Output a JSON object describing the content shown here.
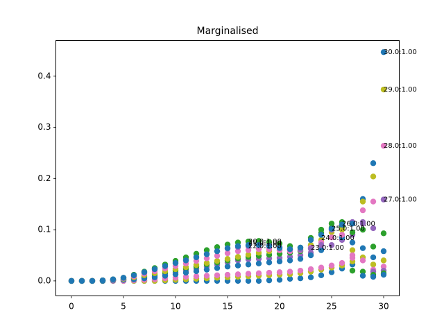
{
  "chart_data": {
    "type": "scatter",
    "title": "Marginalised",
    "xlabel": "",
    "ylabel": "",
    "xlim": [
      -1.5,
      31.5
    ],
    "ylim": [
      -0.0293,
      0.4696
    ],
    "x_ticks": [
      0,
      5,
      10,
      15,
      20,
      25,
      30
    ],
    "y_ticks": [
      0.0,
      0.1,
      0.2,
      0.3,
      0.4
    ],
    "y_tick_labels": [
      "0.0",
      "0.1",
      "0.2",
      "0.3",
      "0.4"
    ],
    "grid": false,
    "legend": "none",
    "palette": [
      "#1f77b4",
      "#bcbd22",
      "#e377c2",
      "#9467bd",
      "#2ca02c"
    ],
    "series": [
      {
        "color": "#1f77b4",
        "x": [
          0,
          1,
          2,
          3,
          4,
          5,
          6,
          7,
          8,
          9,
          10,
          11,
          12,
          13,
          14,
          15,
          16,
          17,
          18,
          19,
          20,
          21,
          22,
          23,
          24,
          25,
          26,
          27,
          28,
          29,
          30
        ],
        "y": [
          0,
          0,
          0,
          0,
          0,
          0,
          0,
          0,
          0,
          0,
          0,
          0,
          0,
          0,
          0,
          0,
          0,
          0,
          0,
          0.001,
          0.002,
          0.004,
          0.005,
          0.007,
          0.011,
          0.017,
          0.024,
          0.032,
          0.064,
          0.23,
          0.447
        ]
      },
      {
        "color": "#bcbd22",
        "x": [
          0,
          1,
          2,
          3,
          4,
          5,
          6,
          7,
          8,
          9,
          10,
          11,
          12,
          13,
          14,
          15,
          16,
          17,
          18,
          19,
          20,
          21,
          22,
          23,
          24,
          25,
          26,
          27,
          28,
          29,
          30
        ],
        "y": [
          0,
          0,
          0,
          0,
          0,
          0,
          0,
          0,
          0,
          0.001,
          0.002,
          0.003,
          0.004,
          0.005,
          0.006,
          0.007,
          0.008,
          0.009,
          0.01,
          0.011,
          0.012,
          0.013,
          0.015,
          0.018,
          0.022,
          0.026,
          0.03,
          0.038,
          0.046,
          0.204,
          0.374
        ]
      },
      {
        "color": "#e377c2",
        "x": [
          0,
          1,
          2,
          3,
          4,
          5,
          6,
          7,
          8,
          9,
          10,
          11,
          12,
          13,
          14,
          15,
          16,
          17,
          18,
          19,
          20,
          21,
          22,
          23,
          24,
          25,
          26,
          27,
          28,
          29,
          30
        ],
        "y": [
          0,
          0,
          0,
          0,
          0,
          0,
          0.001,
          0.002,
          0.003,
          0.005,
          0.006,
          0.008,
          0.009,
          0.01,
          0.011,
          0.012,
          0.013,
          0.014,
          0.015,
          0.016,
          0.017,
          0.018,
          0.02,
          0.023,
          0.026,
          0.03,
          0.035,
          0.045,
          0.138,
          0.155,
          0.264
        ]
      },
      {
        "color": "#9467bd",
        "x": [
          0,
          1,
          2,
          3,
          4,
          5,
          6,
          7,
          8,
          9,
          10,
          11,
          12,
          13,
          14,
          15,
          16,
          17,
          18,
          19,
          20,
          21,
          22,
          23,
          24,
          25,
          26,
          27,
          28,
          29,
          30
        ],
        "y": [
          0,
          0,
          0,
          0,
          0.001,
          0.002,
          0.004,
          0.006,
          0.009,
          0.012,
          0.016,
          0.02,
          0.024,
          0.028,
          0.032,
          0.036,
          0.04,
          0.042,
          0.043,
          0.044,
          0.045,
          0.047,
          0.05,
          0.055,
          0.062,
          0.07,
          0.08,
          0.09,
          0.112,
          0.103,
          0.159
        ]
      },
      {
        "color": "#2ca02c",
        "x": [
          0,
          1,
          2,
          3,
          4,
          5,
          6,
          7,
          8,
          9,
          10,
          11,
          12,
          13,
          14,
          15,
          16,
          17,
          18,
          19,
          20,
          21,
          22,
          23,
          24,
          25,
          26,
          27,
          28,
          29,
          30
        ],
        "y": [
          0,
          0,
          0,
          0,
          0.001,
          0.003,
          0.005,
          0.008,
          0.012,
          0.016,
          0.02,
          0.024,
          0.028,
          0.032,
          0.036,
          0.04,
          0.044,
          0.047,
          0.049,
          0.051,
          0.053,
          0.055,
          0.058,
          0.07,
          0.1,
          0.112,
          0.105,
          0.095,
          0.1,
          0.067,
          0.093
        ]
      },
      {
        "color": "#1f77b4",
        "x": [
          0,
          1,
          2,
          3,
          4,
          5,
          6,
          7,
          8,
          9,
          10,
          11,
          12,
          13,
          14,
          15,
          16,
          17,
          18,
          19,
          20,
          21,
          22,
          23,
          24,
          25,
          26,
          27,
          28,
          29,
          30
        ],
        "y": [
          0,
          0,
          0,
          0,
          0.001,
          0.002,
          0.003,
          0.005,
          0.007,
          0.01,
          0.013,
          0.016,
          0.019,
          0.022,
          0.025,
          0.028,
          0.03,
          0.032,
          0.034,
          0.036,
          0.038,
          0.04,
          0.043,
          0.05,
          0.06,
          0.1,
          0.085,
          0.075,
          0.16,
          0.046,
          0.058
        ]
      },
      {
        "color": "#bcbd22",
        "x": [
          0,
          1,
          2,
          3,
          4,
          5,
          6,
          7,
          8,
          9,
          10,
          11,
          12,
          13,
          14,
          15,
          16,
          17,
          18,
          19,
          20,
          21,
          22,
          23,
          24,
          25,
          26,
          27,
          28,
          29,
          30
        ],
        "y": [
          0,
          0,
          0,
          0.001,
          0.002,
          0.004,
          0.007,
          0.011,
          0.015,
          0.019,
          0.023,
          0.027,
          0.031,
          0.035,
          0.039,
          0.043,
          0.047,
          0.051,
          0.055,
          0.058,
          0.06,
          0.062,
          0.064,
          0.07,
          0.08,
          0.095,
          0.1,
          0.06,
          0.155,
          0.032,
          0.04
        ]
      },
      {
        "color": "#e377c2",
        "x": [
          0,
          1,
          2,
          3,
          4,
          5,
          6,
          7,
          8,
          9,
          10,
          11,
          12,
          13,
          14,
          15,
          16,
          17,
          18,
          19,
          20,
          21,
          22,
          23,
          24,
          25,
          26,
          27,
          28,
          29,
          30
        ],
        "y": [
          0,
          0,
          0,
          0.001,
          0.002,
          0.005,
          0.009,
          0.014,
          0.019,
          0.024,
          0.029,
          0.034,
          0.039,
          0.044,
          0.049,
          0.054,
          0.058,
          0.06,
          0.062,
          0.062,
          0.06,
          0.058,
          0.06,
          0.065,
          0.075,
          0.085,
          0.09,
          0.05,
          0.04,
          0.022,
          0.028
        ]
      },
      {
        "color": "#9467bd",
        "x": [
          0,
          1,
          2,
          3,
          4,
          5,
          6,
          7,
          8,
          9,
          10,
          11,
          12,
          13,
          14,
          15,
          16,
          17,
          18,
          19,
          20,
          21,
          22,
          23,
          24,
          25,
          26,
          27,
          28,
          29,
          30
        ],
        "y": [
          0,
          0,
          0,
          0.001,
          0.003,
          0.006,
          0.011,
          0.017,
          0.023,
          0.029,
          0.035,
          0.041,
          0.047,
          0.053,
          0.058,
          0.063,
          0.066,
          0.068,
          0.07,
          0.069,
          0.066,
          0.062,
          0.061,
          0.063,
          0.07,
          0.1,
          0.11,
          0.115,
          0.115,
          0.018,
          0.02
        ]
      },
      {
        "color": "#2ca02c",
        "x": [
          0,
          1,
          2,
          3,
          4,
          5,
          6,
          7,
          8,
          9,
          10,
          11,
          12,
          13,
          14,
          15,
          16,
          17,
          18,
          19,
          20,
          21,
          22,
          23,
          24,
          25,
          26,
          27,
          28,
          29,
          30
        ],
        "y": [
          0,
          0,
          0,
          0.001,
          0.003,
          0.006,
          0.012,
          0.018,
          0.025,
          0.032,
          0.039,
          0.046,
          0.053,
          0.06,
          0.066,
          0.071,
          0.075,
          0.077,
          0.078,
          0.076,
          0.073,
          0.068,
          0.065,
          0.084,
          0.094,
          0.104,
          0.115,
          0.02,
          0.018,
          0.012,
          0.015
        ]
      },
      {
        "color": "#1f77b4",
        "x": [
          0,
          1,
          2,
          3,
          4,
          5,
          6,
          7,
          8,
          9,
          10,
          11,
          12,
          13,
          14,
          15,
          16,
          17,
          18,
          19,
          20,
          21,
          22,
          23,
          24,
          25,
          26,
          27,
          28,
          29,
          30
        ],
        "y": [
          0,
          0,
          0,
          0.001,
          0.003,
          0.006,
          0.011,
          0.017,
          0.023,
          0.029,
          0.035,
          0.04,
          0.046,
          0.052,
          0.058,
          0.064,
          0.068,
          0.07,
          0.07,
          0.068,
          0.064,
          0.062,
          0.065,
          0.08,
          0.09,
          0.102,
          0.11,
          0.112,
          0.01,
          0.008,
          0.012
        ]
      }
    ],
    "annotations": [
      {
        "text": "30.0:1.00",
        "x": 30,
        "y": 0.447
      },
      {
        "text": "29.0:1.00",
        "x": 30,
        "y": 0.374
      },
      {
        "text": "28.0:1.00",
        "x": 30,
        "y": 0.264
      },
      {
        "text": "27.0:1.00",
        "x": 30,
        "y": 0.159
      },
      {
        "text": "26.0:1.00",
        "x": 26,
        "y": 0.112
      },
      {
        "text": "25.0:1.00",
        "x": 25,
        "y": 0.102
      },
      {
        "text": "24.0:1.00",
        "x": 24,
        "y": 0.084
      },
      {
        "text": "23.0:1.00",
        "x": 23,
        "y": 0.065
      },
      {
        "text": "20.0:1.00",
        "x": 17,
        "y": 0.077
      },
      {
        "text": "21.0:1.00",
        "x": 17,
        "y": 0.074
      },
      {
        "text": "22.0:1.00",
        "x": 17,
        "y": 0.068
      }
    ]
  }
}
